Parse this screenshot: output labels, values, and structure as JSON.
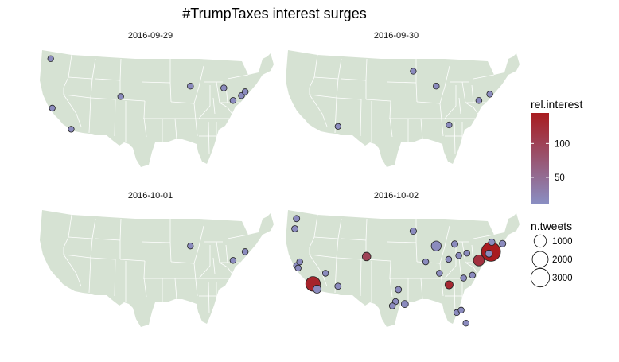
{
  "chart_data": {
    "type": "scatter",
    "title": "#TrumpTaxes interest surges",
    "encoding": {
      "fill": "rel.interest",
      "size": "n.tweets",
      "background": "map of the contiguous United States with state borders"
    },
    "colors": {
      "map_fill": "#d6e2d3",
      "border": "#ffffff",
      "low": "#8a8fc4",
      "high": "#a81b1f",
      "point_stroke": "#222222"
    },
    "legend": {
      "color": {
        "title": "rel.interest",
        "ticks": [
          50,
          100
        ],
        "min": 10,
        "max": 145
      },
      "size": {
        "title": "n.tweets",
        "breaks": [
          1000,
          2000,
          3000
        ]
      },
      "placement": "right"
    },
    "panels": [
      {
        "label": "2016-09-29",
        "points": [
          {
            "lon": -122.3,
            "lat": 47.6,
            "rel_interest": 15,
            "n_tweets": 60
          },
          {
            "lon": -121.9,
            "lat": 37.3,
            "rel_interest": 15,
            "n_tweets": 60
          },
          {
            "lon": -117.2,
            "lat": 32.9,
            "rel_interest": 15,
            "n_tweets": 60
          },
          {
            "lon": -104.9,
            "lat": 39.7,
            "rel_interest": 15,
            "n_tweets": 60
          },
          {
            "lon": -87.6,
            "lat": 41.9,
            "rel_interest": 15,
            "n_tweets": 70
          },
          {
            "lon": -79.3,
            "lat": 41.5,
            "rel_interest": 15,
            "n_tweets": 70
          },
          {
            "lon": -77.0,
            "lat": 38.9,
            "rel_interest": 15,
            "n_tweets": 70
          },
          {
            "lon": -74.9,
            "lat": 39.9,
            "rel_interest": 15,
            "n_tweets": 70
          },
          {
            "lon": -74.0,
            "lat": 40.7,
            "rel_interest": 15,
            "n_tweets": 70
          }
        ]
      },
      {
        "label": "2016-09-30",
        "points": [
          {
            "lon": -112.0,
            "lat": 33.5,
            "rel_interest": 15,
            "n_tweets": 60
          },
          {
            "lon": -93.3,
            "lat": 45.0,
            "rel_interest": 15,
            "n_tweets": 60
          },
          {
            "lon": -87.6,
            "lat": 41.9,
            "rel_interest": 15,
            "n_tweets": 70
          },
          {
            "lon": -84.4,
            "lat": 33.8,
            "rel_interest": 15,
            "n_tweets": 60
          },
          {
            "lon": -77.0,
            "lat": 38.9,
            "rel_interest": 15,
            "n_tweets": 70
          },
          {
            "lon": -74.3,
            "lat": 40.2,
            "rel_interest": 15,
            "n_tweets": 70
          }
        ]
      },
      {
        "label": "2016-10-01",
        "points": [
          {
            "lon": -87.6,
            "lat": 41.9,
            "rel_interest": 15,
            "n_tweets": 60
          },
          {
            "lon": -77.0,
            "lat": 38.9,
            "rel_interest": 15,
            "n_tweets": 70
          },
          {
            "lon": -74.0,
            "lat": 40.7,
            "rel_interest": 15,
            "n_tweets": 70
          }
        ]
      },
      {
        "label": "2016-10-02",
        "points": [
          {
            "lon": -122.3,
            "lat": 47.6,
            "rel_interest": 15,
            "n_tweets": 90
          },
          {
            "lon": -122.7,
            "lat": 45.5,
            "rel_interest": 15,
            "n_tweets": 90
          },
          {
            "lon": -122.3,
            "lat": 37.8,
            "rel_interest": 15,
            "n_tweets": 70
          },
          {
            "lon": -121.5,
            "lat": 38.6,
            "rel_interest": 15,
            "n_tweets": 70
          },
          {
            "lon": -121.9,
            "lat": 37.3,
            "rel_interest": 15,
            "n_tweets": 70
          },
          {
            "lon": -118.2,
            "lat": 34.0,
            "rel_interest": 135,
            "n_tweets": 1600
          },
          {
            "lon": -117.2,
            "lat": 32.9,
            "rel_interest": 15,
            "n_tweets": 250
          },
          {
            "lon": -115.1,
            "lat": 36.2,
            "rel_interest": 15,
            "n_tweets": 70
          },
          {
            "lon": -112.0,
            "lat": 33.5,
            "rel_interest": 15,
            "n_tweets": 90
          },
          {
            "lon": -104.9,
            "lat": 39.7,
            "rel_interest": 100,
            "n_tweets": 300
          },
          {
            "lon": -97.0,
            "lat": 32.8,
            "rel_interest": 15,
            "n_tweets": 90
          },
          {
            "lon": -95.4,
            "lat": 29.8,
            "rel_interest": 15,
            "n_tweets": 150
          },
          {
            "lon": -97.7,
            "lat": 30.3,
            "rel_interest": 15,
            "n_tweets": 70
          },
          {
            "lon": -98.5,
            "lat": 29.4,
            "rel_interest": 15,
            "n_tweets": 70
          },
          {
            "lon": -93.3,
            "lat": 45.0,
            "rel_interest": 15,
            "n_tweets": 100
          },
          {
            "lon": -90.2,
            "lat": 38.6,
            "rel_interest": 15,
            "n_tweets": 70
          },
          {
            "lon": -87.6,
            "lat": 41.9,
            "rel_interest": 15,
            "n_tweets": 500
          },
          {
            "lon": -86.8,
            "lat": 36.2,
            "rel_interest": 15,
            "n_tweets": 70
          },
          {
            "lon": -84.4,
            "lat": 33.8,
            "rel_interest": 130,
            "n_tweets": 250
          },
          {
            "lon": -83.0,
            "lat": 42.3,
            "rel_interest": 15,
            "n_tweets": 100
          },
          {
            "lon": -82.5,
            "lat": 28.0,
            "rel_interest": 15,
            "n_tweets": 70
          },
          {
            "lon": -81.4,
            "lat": 28.5,
            "rel_interest": 15,
            "n_tweets": 70
          },
          {
            "lon": -80.2,
            "lat": 25.8,
            "rel_interest": 15,
            "n_tweets": 70
          },
          {
            "lon": -80.8,
            "lat": 35.2,
            "rel_interest": 15,
            "n_tweets": 70
          },
          {
            "lon": -82.0,
            "lat": 39.9,
            "rel_interest": 15,
            "n_tweets": 70
          },
          {
            "lon": -84.5,
            "lat": 39.1,
            "rel_interest": 15,
            "n_tweets": 70
          },
          {
            "lon": -80.0,
            "lat": 40.4,
            "rel_interest": 15,
            "n_tweets": 70
          },
          {
            "lon": -77.0,
            "lat": 38.9,
            "rel_interest": 120,
            "n_tweets": 700
          },
          {
            "lon": -74.5,
            "lat": 40.3,
            "rel_interest": 15,
            "n_tweets": 150
          },
          {
            "lon": -74.0,
            "lat": 40.7,
            "rel_interest": 145,
            "n_tweets": 3200
          },
          {
            "lon": -73.8,
            "lat": 42.7,
            "rel_interest": 15,
            "n_tweets": 100
          },
          {
            "lon": -71.1,
            "lat": 42.4,
            "rel_interest": 15,
            "n_tweets": 100
          },
          {
            "lon": -78.6,
            "lat": 35.8,
            "rel_interest": 15,
            "n_tweets": 70
          }
        ]
      }
    ]
  }
}
